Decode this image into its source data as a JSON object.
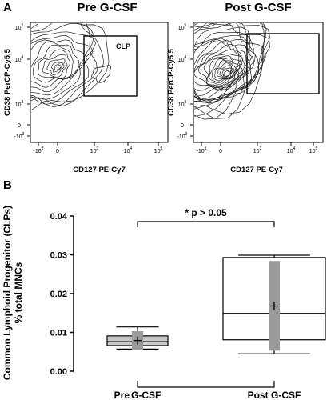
{
  "panel_a": {
    "letter": "A",
    "plots": [
      {
        "title": "Pre G-CSF",
        "xlabel": "CD127 PE-Cy7",
        "ylabel": "CD38 PerCP-Cy5.5",
        "gate_label": "CLP",
        "x_ticks": [
          "-10",
          "0",
          "10",
          "10",
          "10"
        ],
        "x_tick_exps": [
          "3",
          "",
          "3",
          "4",
          "5"
        ],
        "y_ticks": [
          "10",
          "10",
          "10",
          "0",
          "-10"
        ],
        "y_tick_exps": [
          "5",
          "4",
          "3",
          "",
          "3"
        ]
      },
      {
        "title": "Post G-CSF",
        "xlabel": "CD127 PE-Cy7",
        "ylabel": "CD38 PerCP-Cy5.5",
        "gate_label": "",
        "x_ticks": [
          "-10",
          "0",
          "10",
          "10",
          "10"
        ],
        "x_tick_exps": [
          "3",
          "",
          "3",
          "4",
          "5"
        ],
        "y_ticks": [
          "10",
          "10",
          "10",
          "0",
          "-10"
        ],
        "y_tick_exps": [
          "5",
          "4",
          "3",
          "",
          "3"
        ]
      }
    ]
  },
  "panel_b": {
    "letter": "B",
    "ylabel_line1": "Common Lymphoid Progenitor (CLPs)",
    "ylabel_line2": "% total MNCs",
    "annotation": "* p > 0.05"
  },
  "chart_data": {
    "type": "box",
    "categories": [
      "Pre G-CSF",
      "Post G-CSF"
    ],
    "category_label_parts": [
      [
        "Pre",
        "G-CSF"
      ],
      [
        "Post G-CSF"
      ]
    ],
    "ylim": [
      0.0,
      0.04
    ],
    "y_ticks": [
      "0.00",
      "0.01",
      "0.02",
      "0.03",
      "0.04"
    ],
    "y_tick_values": [
      0.0,
      0.01,
      0.02,
      0.03,
      0.04
    ],
    "boxes": [
      {
        "name": "Pre G-CSF",
        "whisker_low": 0.0057,
        "q1": 0.0066,
        "median": 0.0076,
        "q3": 0.0091,
        "whisker_high": 0.0114,
        "mean": 0.0079,
        "sd_low": 0.0055,
        "sd_high": 0.0103
      },
      {
        "name": "Post G-CSF",
        "whisker_low": 0.0045,
        "q1": 0.0081,
        "median": 0.0149,
        "q3": 0.0293,
        "whisker_high": 0.0299,
        "mean": 0.0168,
        "sd_low": 0.0053,
        "sd_high": 0.0284
      }
    ],
    "colors": {
      "pre_box": "#c8c8c8",
      "post_box": "#ffffff",
      "sd_bar": "#9a9a9a"
    }
  }
}
